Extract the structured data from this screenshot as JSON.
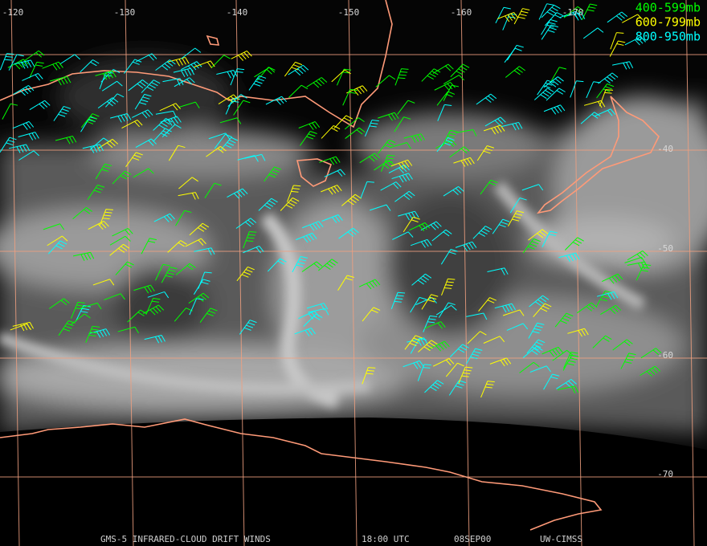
{
  "longitude_labels": [
    "-120",
    "-130",
    "-140",
    "-150",
    "-160",
    "-170"
  ],
  "latitude_labels": [
    "-40",
    "-50",
    "-60",
    "-70"
  ],
  "legend": [
    {
      "label": "400-599mb",
      "color": "#00ff00"
    },
    {
      "label": "600-799mb",
      "color": "#ffff00"
    },
    {
      "label": "800-950mb",
      "color": "#00ffff"
    }
  ],
  "footer": {
    "product": "GMS-5 INFRARED-CLOUD DRIFT WINDS",
    "time": "18:00 UTC",
    "date": "08SEP00",
    "source": "UW-CIMSS"
  }
}
